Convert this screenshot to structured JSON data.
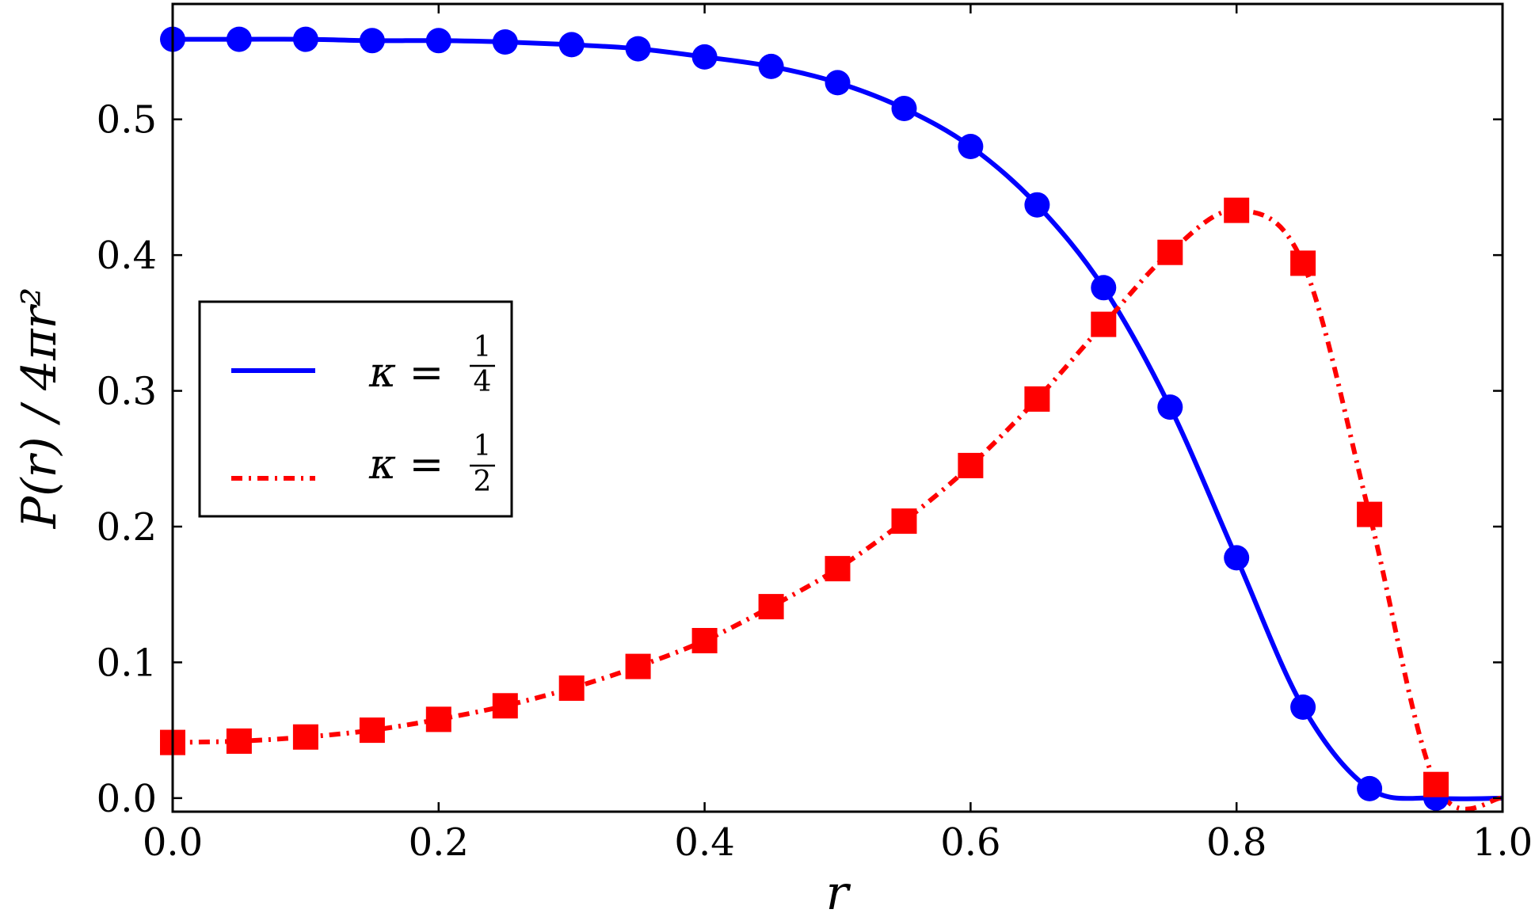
{
  "chart_data": {
    "type": "line",
    "xlabel": "r",
    "ylabel": "P(r) / 4πr²",
    "xlim": [
      0.0,
      1.0
    ],
    "ylim": [
      -0.01,
      0.585
    ],
    "xticks": [
      "0.0",
      "0.2",
      "0.4",
      "0.6",
      "0.8",
      "1.0"
    ],
    "yticks": [
      "0.0",
      "0.1",
      "0.2",
      "0.3",
      "0.4",
      "0.5"
    ],
    "grid": false,
    "legend_position": "center-left",
    "series": [
      {
        "name": "κ = 1/4",
        "legend_prefix": "κ =",
        "legend_num": "1",
        "legend_den": "4",
        "color": "#0000ff",
        "line_style": "solid",
        "marker": "circle",
        "x": [
          0.0,
          0.05,
          0.1,
          0.15,
          0.2,
          0.25,
          0.3,
          0.35,
          0.4,
          0.45,
          0.5,
          0.55,
          0.6,
          0.65,
          0.7,
          0.75,
          0.8,
          0.85,
          0.9,
          0.95
        ],
        "y": [
          0.559,
          0.559,
          0.559,
          0.558,
          0.558,
          0.557,
          0.555,
          0.552,
          0.546,
          0.539,
          0.527,
          0.508,
          0.48,
          0.437,
          0.376,
          0.288,
          0.177,
          0.067,
          0.007,
          0.0
        ]
      },
      {
        "name": "κ = 1/2",
        "legend_prefix": "κ =",
        "legend_num": "1",
        "legend_den": "2",
        "color": "#ff0000",
        "line_style": "dash-dot",
        "marker": "square",
        "x": [
          0.0,
          0.05,
          0.1,
          0.15,
          0.2,
          0.25,
          0.3,
          0.35,
          0.4,
          0.45,
          0.5,
          0.55,
          0.6,
          0.65,
          0.7,
          0.75,
          0.8,
          0.85,
          0.9,
          0.95
        ],
        "y": [
          0.041,
          0.042,
          0.045,
          0.05,
          0.058,
          0.068,
          0.081,
          0.097,
          0.116,
          0.141,
          0.169,
          0.204,
          0.245,
          0.294,
          0.349,
          0.402,
          0.433,
          0.394,
          0.209,
          0.01
        ]
      }
    ]
  }
}
